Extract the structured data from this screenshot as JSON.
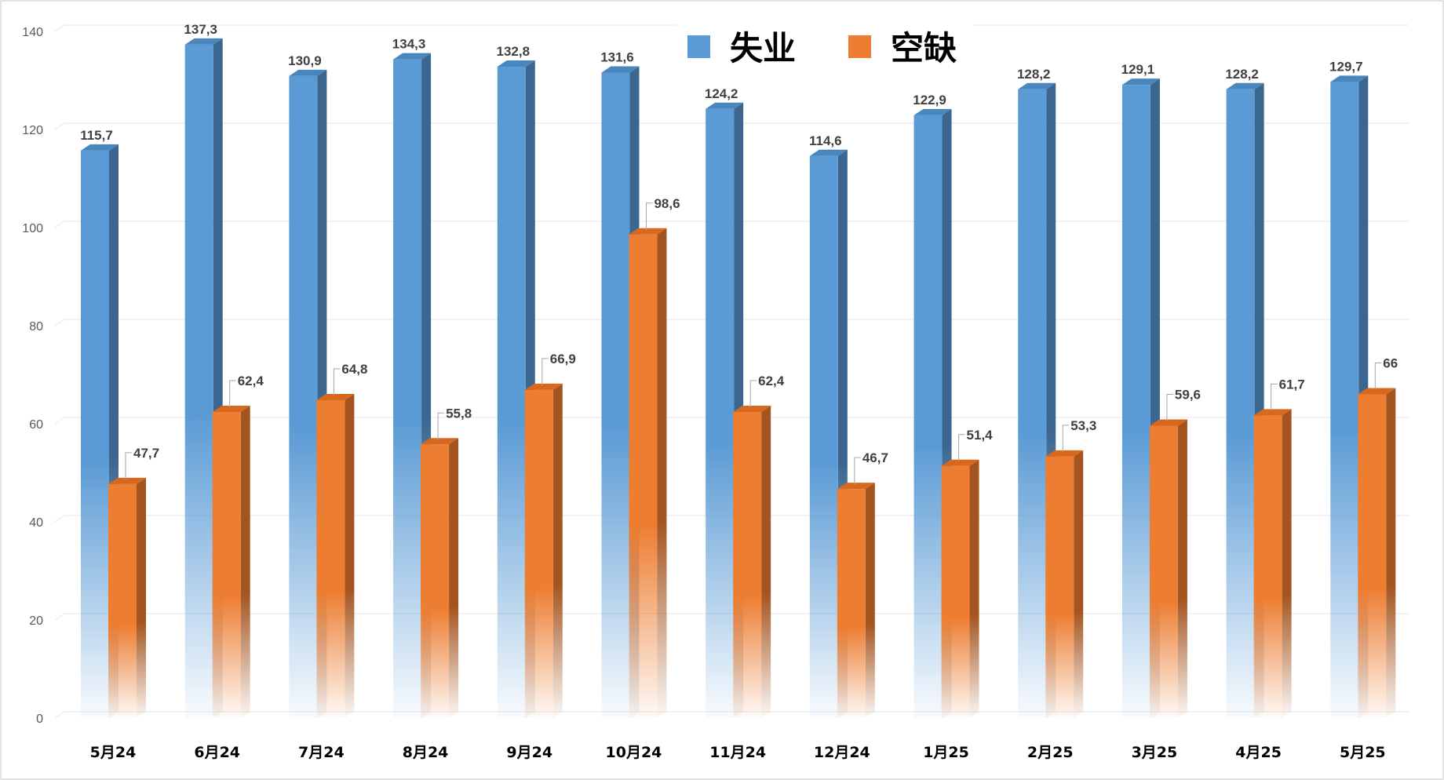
{
  "chart_data": {
    "type": "bar",
    "categories": [
      "5月24",
      "6月24",
      "7月24",
      "8月24",
      "9月24",
      "10月24",
      "11月24",
      "12月24",
      "1月25",
      "2月25",
      "3月25",
      "4月25",
      "5月25"
    ],
    "series": [
      {
        "name": "失业",
        "color": "#5B9BD5",
        "values": [
          115.7,
          137.3,
          130.9,
          134.3,
          132.8,
          131.6,
          124.2,
          114.6,
          122.9,
          128.2,
          129.1,
          128.2,
          129.7
        ],
        "labels": [
          "115,7",
          "137,3",
          "130,9",
          "134,3",
          "132,8",
          "131,6",
          "124,2",
          "114,6",
          "122,9",
          "128,2",
          "129,1",
          "128,2",
          "129,7"
        ]
      },
      {
        "name": "空缺",
        "color": "#ED7D31",
        "values": [
          47.7,
          62.4,
          64.8,
          55.8,
          66.9,
          98.6,
          62.4,
          46.7,
          51.4,
          53.3,
          59.6,
          61.7,
          66
        ],
        "labels": [
          "47,7",
          "62,4",
          "64,8",
          "55,8",
          "66,9",
          "98,6",
          "62,4",
          "46,7",
          "51,4",
          "53,3",
          "59,6",
          "61,7",
          "66"
        ]
      }
    ],
    "y_ticks": [
      "0",
      "20",
      "40",
      "60",
      "80",
      "100",
      "120",
      "140"
    ],
    "ylim": [
      0,
      140
    ],
    "grid": true,
    "legend_position": "top",
    "title": "",
    "xlabel": "",
    "ylabel": ""
  }
}
